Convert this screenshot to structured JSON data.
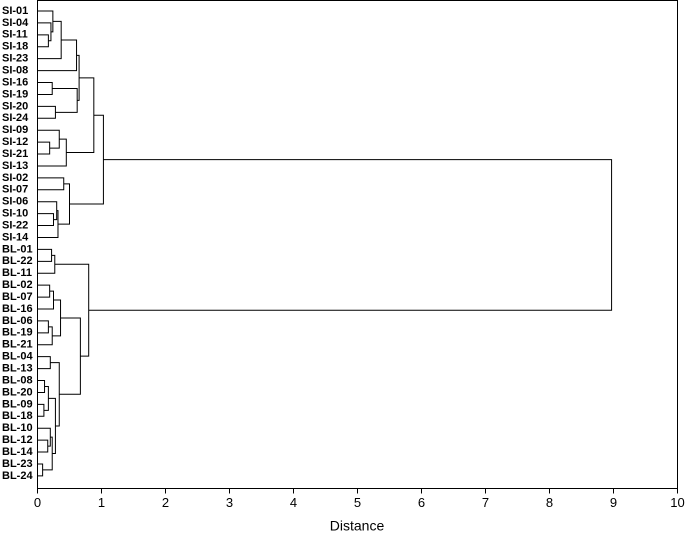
{
  "chart_data": {
    "type": "dendrogram",
    "xlabel": "Distance",
    "xlim": [
      0,
      10
    ],
    "xticks": [
      0,
      1,
      2,
      3,
      4,
      5,
      6,
      7,
      8,
      9,
      10
    ],
    "color": "#000000",
    "categories": [
      "SI-01",
      "SI-04",
      "SI-11",
      "SI-18",
      "SI-23",
      "SI-08",
      "SI-16",
      "SI-19",
      "SI-20",
      "SI-24",
      "SI-09",
      "SI-12",
      "SI-21",
      "SI-13",
      "SI-02",
      "SI-07",
      "SI-06",
      "SI-10",
      "SI-22",
      "SI-14",
      "BL-01",
      "BL-22",
      "BL-11",
      "BL-02",
      "BL-07",
      "BL-16",
      "BL-06",
      "BL-19",
      "BL-21",
      "BL-04",
      "BL-13",
      "BL-08",
      "BL-20",
      "BL-09",
      "BL-18",
      "BL-10",
      "BL-12",
      "BL-14",
      "BL-23",
      "BL-24"
    ],
    "merges": [
      {
        "left": 2,
        "right": 3,
        "distance": 0.17
      },
      {
        "left": 1,
        "right": 40,
        "distance": 0.21
      },
      {
        "left": 0,
        "right": 41,
        "distance": 0.24
      },
      {
        "left": 42,
        "right": 4,
        "distance": 0.37
      },
      {
        "left": 43,
        "right": 5,
        "distance": 0.61
      },
      {
        "left": 6,
        "right": 7,
        "distance": 0.23
      },
      {
        "left": 8,
        "right": 9,
        "distance": 0.28
      },
      {
        "left": 45,
        "right": 46,
        "distance": 0.62
      },
      {
        "left": 44,
        "right": 47,
        "distance": 0.65
      },
      {
        "left": 11,
        "right": 12,
        "distance": 0.19
      },
      {
        "left": 10,
        "right": 49,
        "distance": 0.34
      },
      {
        "left": 50,
        "right": 13,
        "distance": 0.45
      },
      {
        "left": 48,
        "right": 51,
        "distance": 0.88
      },
      {
        "left": 14,
        "right": 15,
        "distance": 0.41
      },
      {
        "left": 17,
        "right": 18,
        "distance": 0.25
      },
      {
        "left": 16,
        "right": 54,
        "distance": 0.3
      },
      {
        "left": 55,
        "right": 19,
        "distance": 0.32
      },
      {
        "left": 53,
        "right": 56,
        "distance": 0.5
      },
      {
        "left": 52,
        "right": 57,
        "distance": 1.03
      },
      {
        "left": 20,
        "right": 21,
        "distance": 0.22
      },
      {
        "left": 59,
        "right": 22,
        "distance": 0.27
      },
      {
        "left": 23,
        "right": 24,
        "distance": 0.19
      },
      {
        "left": 61,
        "right": 25,
        "distance": 0.25
      },
      {
        "left": 26,
        "right": 27,
        "distance": 0.17
      },
      {
        "left": 63,
        "right": 28,
        "distance": 0.23
      },
      {
        "left": 62,
        "right": 64,
        "distance": 0.36
      },
      {
        "left": 29,
        "right": 30,
        "distance": 0.2
      },
      {
        "left": 31,
        "right": 32,
        "distance": 0.11
      },
      {
        "left": 33,
        "right": 34,
        "distance": 0.1
      },
      {
        "left": 67,
        "right": 68,
        "distance": 0.17
      },
      {
        "left": 36,
        "right": 37,
        "distance": 0.16
      },
      {
        "left": 35,
        "right": 70,
        "distance": 0.2
      },
      {
        "left": 38,
        "right": 39,
        "distance": 0.08
      },
      {
        "left": 71,
        "right": 72,
        "distance": 0.23
      },
      {
        "left": 69,
        "right": 73,
        "distance": 0.28
      },
      {
        "left": 66,
        "right": 74,
        "distance": 0.34
      },
      {
        "left": 65,
        "right": 75,
        "distance": 0.67
      },
      {
        "left": 60,
        "right": 76,
        "distance": 0.8
      },
      {
        "left": 58,
        "right": 77,
        "distance": 8.97
      }
    ]
  }
}
